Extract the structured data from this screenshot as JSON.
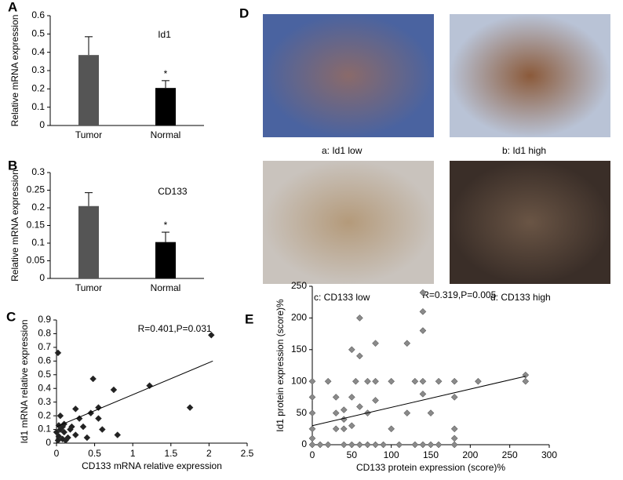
{
  "chart_data": [
    {
      "type": "bar",
      "panel": "A",
      "title": "Id1",
      "y_label": "Relative mRNA expression",
      "categories": [
        "Tumor",
        "Normal"
      ],
      "values": [
        0.385,
        0.205
      ],
      "errors": [
        0.1,
        0.04
      ],
      "colors": [
        "#555555",
        "#000000"
      ],
      "annotations": [
        null,
        "*"
      ],
      "ylim": [
        0,
        0.6
      ],
      "yticks": [
        0,
        0.1,
        0.2,
        0.3,
        0.4,
        0.5,
        0.6
      ]
    },
    {
      "type": "bar",
      "panel": "B",
      "title": "CD133",
      "y_label": "Relative mRNA expression",
      "categories": [
        "Tumor",
        "Normal"
      ],
      "values": [
        0.205,
        0.103
      ],
      "errors": [
        0.038,
        0.028
      ],
      "colors": [
        "#555555",
        "#000000"
      ],
      "annotations": [
        null,
        "*"
      ],
      "ylim": [
        0,
        0.3
      ],
      "yticks": [
        0,
        0.05,
        0.1,
        0.15,
        0.2,
        0.25,
        0.3
      ]
    },
    {
      "type": "scatter",
      "panel": "C",
      "annotation": "R=0.401,P=0.031",
      "x_label": "CD133 mRNA relative expression",
      "y_label": "Id1 mRNA relative expression",
      "color": "#222222",
      "x": [
        0.02,
        0.05,
        0.03,
        0.08,
        0.1,
        0.15,
        0.2,
        0.1,
        0.05,
        0.12,
        0.25,
        0.3,
        0.25,
        0.35,
        0.4,
        0.45,
        0.48,
        0.55,
        0.55,
        0.6,
        0.75,
        0.8,
        1.22,
        1.75,
        2.03,
        0.02,
        0.0,
        0.03,
        0.08,
        0.18
      ],
      "y": [
        0.66,
        0.1,
        0.05,
        0.12,
        0.08,
        0.04,
        0.12,
        0.14,
        0.2,
        0.02,
        0.06,
        0.18,
        0.25,
        0.12,
        0.04,
        0.22,
        0.47,
        0.26,
        0.18,
        0.1,
        0.39,
        0.06,
        0.42,
        0.26,
        0.79,
        0.02,
        0.08,
        0.13,
        0.03,
        0.1
      ],
      "trendline": {
        "x": [
          0,
          2.05
        ],
        "y": [
          0.12,
          0.6
        ]
      },
      "xlim": [
        0,
        2.5
      ],
      "xticks": [
        0,
        0.5,
        1,
        1.5,
        2,
        2.5
      ],
      "ylim": [
        0,
        0.9
      ],
      "yticks": [
        0,
        0.1,
        0.2,
        0.3,
        0.4,
        0.5,
        0.6,
        0.7,
        0.8,
        0.9
      ]
    },
    {
      "type": "scatter",
      "panel": "E",
      "annotation": "R=0.319,P=0.005",
      "x_label": "CD133 protein expression (score)%",
      "y_label": "Id1 protein expression (score)%",
      "color": "#8a8a8a",
      "x": [
        0,
        0,
        0,
        0,
        0,
        0,
        10,
        20,
        20,
        30,
        30,
        30,
        40,
        40,
        40,
        40,
        50,
        50,
        50,
        50,
        55,
        60,
        60,
        60,
        60,
        70,
        70,
        70,
        80,
        80,
        80,
        80,
        90,
        100,
        100,
        110,
        120,
        120,
        130,
        130,
        140,
        140,
        140,
        140,
        140,
        140,
        150,
        150,
        160,
        160,
        180,
        180,
        180,
        180,
        180,
        210,
        270,
        270
      ],
      "y": [
        0,
        25,
        50,
        75,
        100,
        10,
        0,
        100,
        0,
        25,
        50,
        75,
        25,
        40,
        55,
        0,
        0,
        30,
        75,
        150,
        100,
        200,
        60,
        140,
        0,
        0,
        100,
        50,
        160,
        100,
        70,
        0,
        0,
        25,
        100,
        0,
        160,
        50,
        0,
        100,
        0,
        240,
        210,
        180,
        100,
        80,
        0,
        50,
        0,
        100,
        100,
        75,
        0,
        10,
        25,
        100,
        110,
        100
      ],
      "trendline": {
        "x": [
          0,
          270
        ],
        "y": [
          30,
          108
        ]
      },
      "xlim": [
        0,
        300
      ],
      "xticks": [
        0,
        50,
        100,
        150,
        200,
        250,
        300
      ],
      "ylim": [
        0,
        250
      ],
      "yticks": [
        0,
        50,
        100,
        150,
        200,
        250
      ]
    }
  ],
  "figure_d": {
    "panel": "D",
    "captions": [
      "a: Id1 low",
      "b: Id1 high",
      "c: CD133 low",
      "d: CD133 high"
    ]
  }
}
